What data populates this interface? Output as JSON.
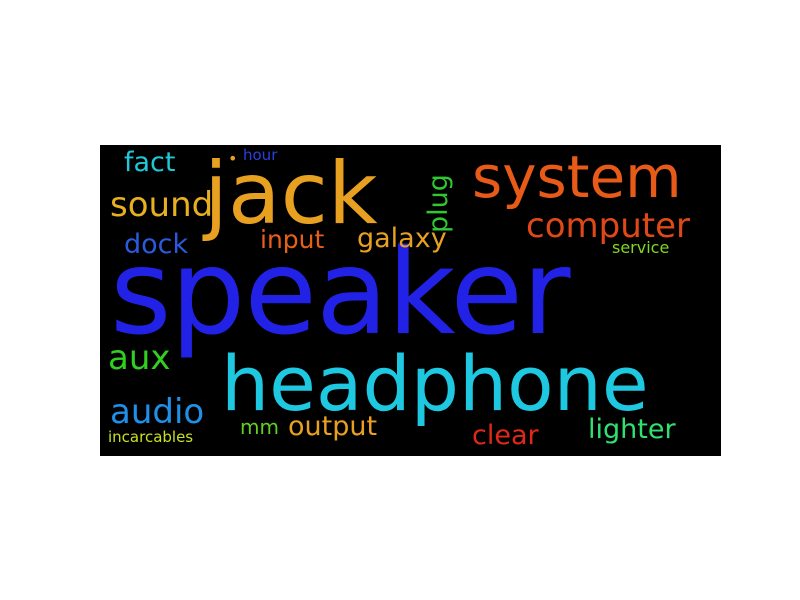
{
  "word_cloud": {
    "background": "#000000",
    "words": [
      {
        "id": "speaker",
        "text": "speaker",
        "color": "#2222e6"
      },
      {
        "id": "headphone",
        "text": "headphone",
        "color": "#1ec8e0"
      },
      {
        "id": "jack",
        "text": "jack",
        "color": "#e8a020"
      },
      {
        "id": "system",
        "text": "system",
        "color": "#e85a18"
      },
      {
        "id": "computer",
        "text": "computer",
        "color": "#e04818"
      },
      {
        "id": "sound",
        "text": "sound",
        "color": "#e8b020"
      },
      {
        "id": "fact",
        "text": "fact",
        "color": "#1ec8d8"
      },
      {
        "id": "hour",
        "text": "hour",
        "color": "#2a40e0"
      },
      {
        "id": "dot",
        "text": "•",
        "color": "#e8a020"
      },
      {
        "id": "plug",
        "text": "plug",
        "color": "#30c830"
      },
      {
        "id": "dock",
        "text": "dock",
        "color": "#2a5ae0"
      },
      {
        "id": "input",
        "text": "input",
        "color": "#e86018"
      },
      {
        "id": "galaxy",
        "text": "galaxy",
        "color": "#e8a020"
      },
      {
        "id": "service",
        "text": "service",
        "color": "#80d820"
      },
      {
        "id": "aux",
        "text": "aux",
        "color": "#30d020"
      },
      {
        "id": "audio",
        "text": "audio",
        "color": "#1e90e8"
      },
      {
        "id": "mm",
        "text": "mm",
        "color": "#60d020"
      },
      {
        "id": "output",
        "text": "output",
        "color": "#e8a020"
      },
      {
        "id": "clear",
        "text": "clear",
        "color": "#e02818"
      },
      {
        "id": "lighter",
        "text": "lighter",
        "color": "#30e070"
      },
      {
        "id": "incarcables",
        "text": "incarcables",
        "color": "#c8e020"
      }
    ]
  }
}
